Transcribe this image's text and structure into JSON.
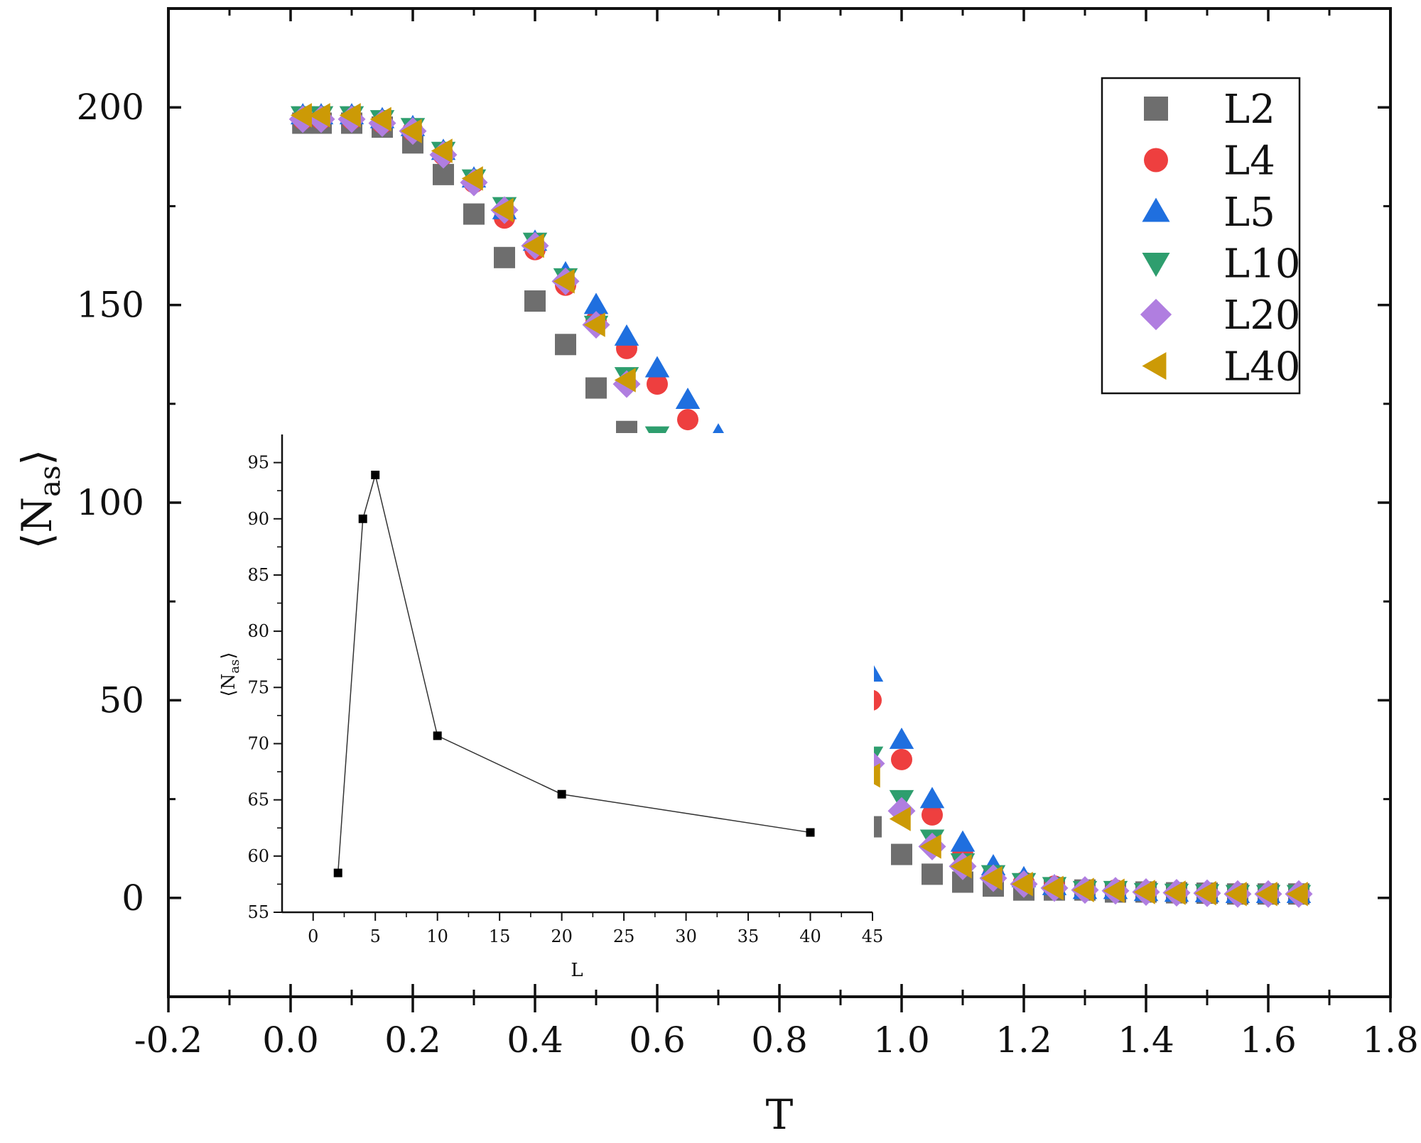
{
  "chart_data": [
    {
      "type": "scatter",
      "xlabel": "T",
      "ylabel_main": "N",
      "ylabel_sub": "as",
      "xlim": [
        -0.2,
        1.8
      ],
      "ylim": [
        -25,
        225
      ],
      "xticks": [
        -0.2,
        0.0,
        0.2,
        0.4,
        0.6,
        0.8,
        1.0,
        1.2,
        1.4,
        1.6,
        1.8
      ],
      "xtick_labels": [
        "-0.2",
        "0.0",
        "0.2",
        "0.4",
        "0.6",
        "0.8",
        "1.0",
        "1.2",
        "1.4",
        "1.6",
        "1.8"
      ],
      "yticks": [
        0,
        50,
        100,
        150,
        200
      ],
      "ytick_labels": [
        "0",
        "50",
        "100",
        "150",
        "200"
      ],
      "legend_position": "top-right",
      "x": [
        0.02,
        0.05,
        0.1,
        0.15,
        0.2,
        0.25,
        0.3,
        0.35,
        0.4,
        0.45,
        0.5,
        0.55,
        0.6,
        0.65,
        0.7,
        0.75,
        0.8,
        0.85,
        0.9,
        0.95,
        1.0,
        1.05,
        1.1,
        1.15,
        1.2,
        1.25,
        1.3,
        1.35,
        1.4,
        1.45,
        1.5,
        1.55,
        1.6,
        1.65
      ],
      "series": [
        {
          "name": "L2",
          "label": "L2",
          "marker": "square",
          "color": "#6e6e6e",
          "values": [
            196,
            196,
            196,
            195,
            191,
            183,
            173,
            162,
            151,
            140,
            129,
            118,
            107,
            96,
            85,
            71,
            58,
            45,
            31,
            18,
            11,
            6,
            4,
            3,
            2,
            2,
            2,
            1.5,
            1.5,
            1.3,
            1.2,
            1.0,
            1.0,
            1.0
          ]
        },
        {
          "name": "L4",
          "label": "L4",
          "marker": "circle",
          "color": "#ee3f3f",
          "values": [
            197,
            197,
            197,
            196,
            194,
            188,
            181,
            172,
            164,
            155,
            146,
            139,
            130,
            121,
            112,
            101,
            90,
            78,
            65,
            50,
            35,
            21,
            11,
            6,
            4,
            3,
            2,
            2,
            1.5,
            1.3,
            1.2,
            1.0,
            1.0,
            1.0
          ]
        },
        {
          "name": "L5",
          "label": "L5",
          "marker": "triangle-up",
          "color": "#1f6fdf",
          "values": [
            198,
            198,
            198,
            197,
            195,
            189,
            182,
            174,
            166,
            158,
            150,
            142,
            134,
            126,
            117,
            107,
            96,
            84,
            71,
            57,
            40,
            25,
            14,
            8,
            5,
            3,
            2,
            2,
            1.5,
            1.3,
            1.2,
            1.0,
            1.0,
            1.0
          ]
        },
        {
          "name": "L10",
          "label": "L10",
          "marker": "triangle-down",
          "color": "#2e9e6e",
          "values": [
            198,
            198,
            198,
            197,
            195,
            189,
            182,
            175,
            166,
            157,
            145,
            132,
            117,
            103,
            91,
            81,
            70,
            60,
            48,
            36,
            25,
            15,
            9,
            6,
            4,
            3,
            2,
            2,
            1.5,
            1.3,
            1.2,
            1.0,
            1.0,
            1.0
          ]
        },
        {
          "name": "L20",
          "label": "L20",
          "marker": "diamond",
          "color": "#b07ee0",
          "values": [
            197,
            197,
            197,
            196,
            194,
            188,
            181,
            174,
            165,
            156,
            145,
            130,
            113,
            98,
            86,
            76,
            66,
            56,
            45,
            34,
            22,
            13,
            8,
            5,
            3.5,
            2.5,
            2,
            1.8,
            1.5,
            1.3,
            1.2,
            1.0,
            1.0,
            1.0
          ]
        },
        {
          "name": "L40",
          "label": "L40",
          "marker": "triangle-left",
          "color": "#cc9a06",
          "values": [
            198,
            198,
            198,
            197,
            194,
            189,
            182,
            174,
            165,
            156,
            145,
            131,
            113,
            97,
            83,
            72,
            62,
            54,
            41,
            31,
            20,
            13,
            8,
            5,
            3.5,
            2.5,
            2,
            1.8,
            1.5,
            1.3,
            1.2,
            1.0,
            1.0,
            1.0
          ]
        }
      ]
    },
    {
      "type": "line",
      "position": "inset-lower-left",
      "xlabel": "L",
      "ylabel_main": "N",
      "ylabel_sub": "as",
      "xlim": [
        -2.5,
        45
      ],
      "ylim": [
        55,
        97.5
      ],
      "xticks": [
        0,
        5,
        10,
        15,
        20,
        25,
        30,
        35,
        40,
        45
      ],
      "xtick_labels": [
        "0",
        "5",
        "10",
        "15",
        "20",
        "25",
        "30",
        "35",
        "40",
        "45"
      ],
      "yticks": [
        55,
        60,
        65,
        70,
        75,
        80,
        85,
        90,
        95
      ],
      "ytick_labels": [
        "55",
        "60",
        "65",
        "70",
        "75",
        "80",
        "85",
        "90",
        "95"
      ],
      "series": [
        {
          "name": "<Nas> vs L",
          "marker": "square",
          "color": "#000000",
          "x": [
            2,
            4,
            5,
            10,
            20,
            40
          ],
          "values": [
            58.5,
            90.0,
            93.9,
            70.7,
            65.5,
            62.1
          ]
        }
      ]
    }
  ]
}
